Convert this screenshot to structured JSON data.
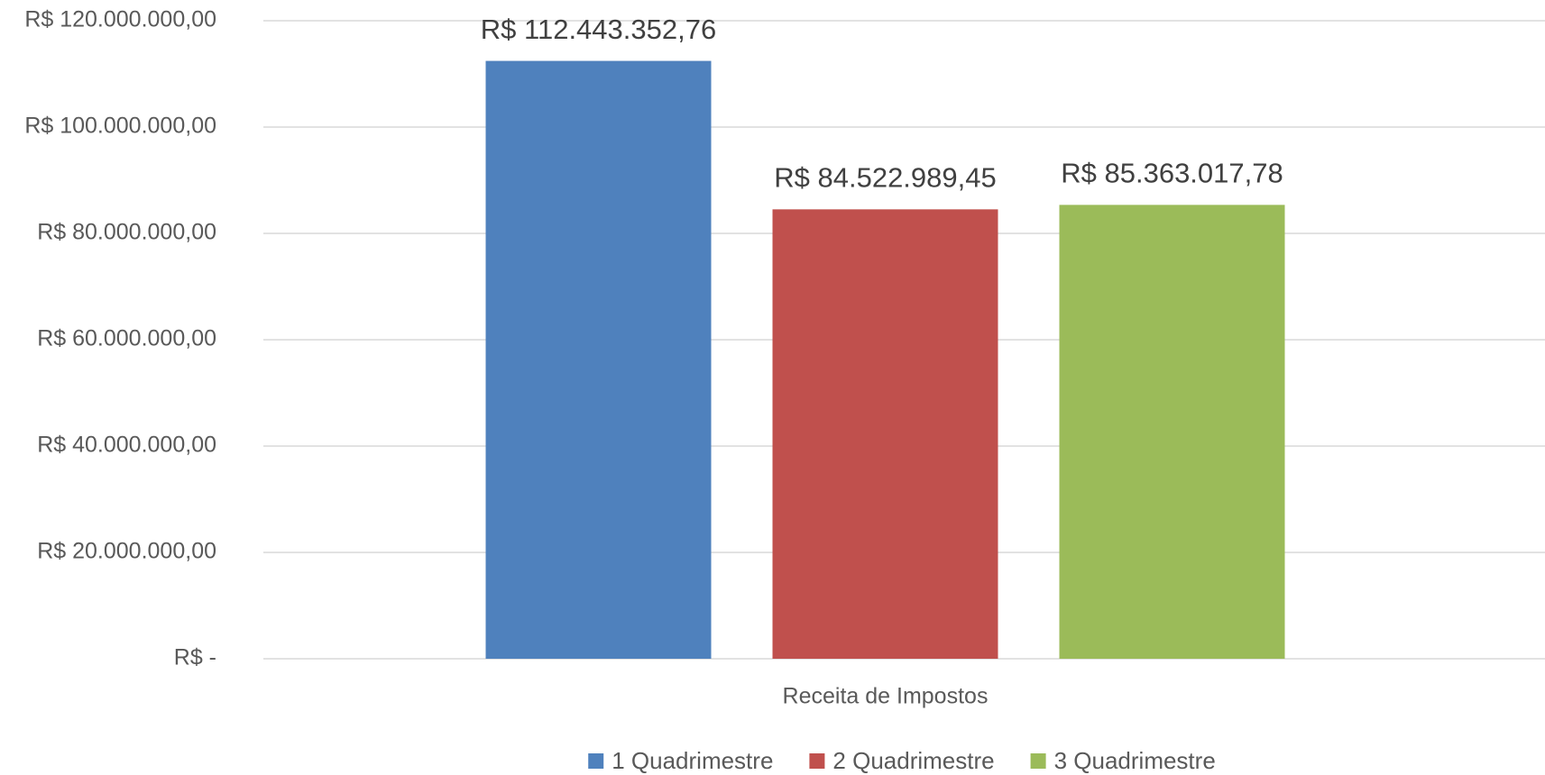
{
  "chart_data": {
    "type": "bar",
    "categories": [
      "Receita de Impostos"
    ],
    "series": [
      {
        "name": "1 Quadrimestre",
        "color": "#4f81bd",
        "values": [
          112443352.76
        ],
        "value_labels": [
          "R$ 112.443.352,76"
        ]
      },
      {
        "name": "2 Quadrimestre",
        "color": "#c0504d",
        "values": [
          84522989.45
        ],
        "value_labels": [
          "R$ 84.522.989,45"
        ]
      },
      {
        "name": "3 Quadrimestre",
        "color": "#9bbb59",
        "values": [
          85363017.78
        ],
        "value_labels": [
          "R$ 85.363.017,78"
        ]
      }
    ],
    "ylim": [
      0,
      120000000
    ],
    "yticks": [
      {
        "value": 0,
        "label": "R$ -"
      },
      {
        "value": 20000000,
        "label": "R$ 20.000.000,00"
      },
      {
        "value": 40000000,
        "label": "R$ 40.000.000,00"
      },
      {
        "value": 60000000,
        "label": "R$ 60.000.000,00"
      },
      {
        "value": 80000000,
        "label": "R$ 80.000.000,00"
      },
      {
        "value": 100000000,
        "label": "R$ 100.000.000,00"
      },
      {
        "value": 120000000,
        "label": "R$ 120.000.000,00"
      }
    ],
    "grid": true,
    "legend": "bottom"
  }
}
